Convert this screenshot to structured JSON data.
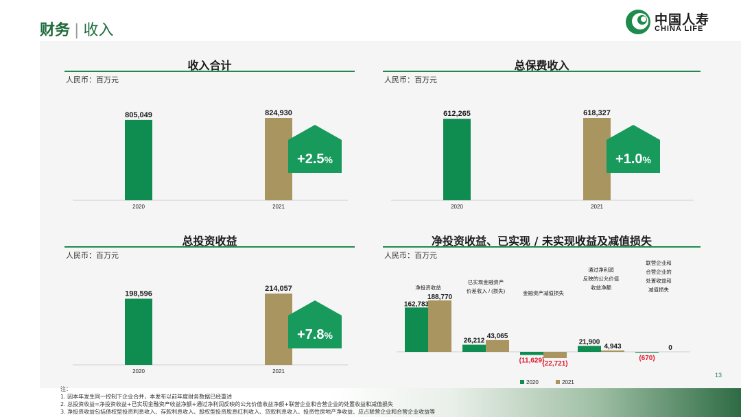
{
  "header": {
    "title_main": "财务",
    "separator": "|",
    "title_sub": "收入"
  },
  "logo": {
    "name_cn": "中国人寿",
    "name_en": "CHINA LIFE"
  },
  "page_number": "13",
  "colors": {
    "y2020": "#0f8c4f",
    "y2021": "#a89560",
    "accent": "#1e8a4c"
  },
  "chart_data": [
    {
      "type": "bar",
      "title": "收入合计",
      "unit": "人民币：百万元",
      "categories": [
        "2020",
        "2021"
      ],
      "values": [
        805049,
        824930
      ],
      "value_labels": [
        "805,049",
        "824,930"
      ],
      "growth_label": "+2.5",
      "growth_suffix": "%"
    },
    {
      "type": "bar",
      "title": "总保费收入",
      "unit": "人民币：百万元",
      "categories": [
        "2020",
        "2021"
      ],
      "values": [
        612265,
        618327
      ],
      "value_labels": [
        "612,265",
        "618,327"
      ],
      "growth_label": "+1.0",
      "growth_suffix": "%"
    },
    {
      "type": "bar",
      "title": "总投资收益",
      "unit": "人民币：百万元",
      "categories": [
        "2020",
        "2021"
      ],
      "values": [
        198596,
        214057
      ],
      "value_labels": [
        "198,596",
        "214,057"
      ],
      "growth_label": "+7.8",
      "growth_suffix": "%"
    },
    {
      "type": "bar",
      "title": "净投资收益、已实现 / 未实现收益及减值损失",
      "unit": "人民币：百万元",
      "categories": [
        [
          "净投资收益"
        ],
        [
          "已实现金融资产",
          "价差收入 / (损失)"
        ],
        [
          "金融资产减值损失"
        ],
        [
          "通过净利润",
          "反映的公允价值",
          "收益净额"
        ],
        [
          "联营企业和",
          "合营企业的",
          "处置收益和",
          "减值损失"
        ]
      ],
      "series": [
        {
          "name": "2020",
          "values": [
            162783,
            26212,
            -11629,
            21900,
            -670
          ],
          "labels": [
            "162,783",
            "26,212",
            "(11,629)",
            "21,900",
            "(670)"
          ]
        },
        {
          "name": "2021",
          "values": [
            188770,
            43065,
            -22721,
            4943,
            0
          ],
          "labels": [
            "188,770",
            "43,065",
            "(22,721)",
            "4,943",
            "0"
          ]
        }
      ],
      "legend_position": "bottom"
    }
  ],
  "notes": [
    "注：",
    "1.    因本年发生同一控制下企业合并，本发布以前年度财务数据已经重述",
    "2.    总投资收益=净投资收益+已实现金融资产收益净额+通过净利润反映的公允价值收益净额+联营企业和合营企业的处置收益和减值损失",
    "3.    净投资收益包括债权型投资利息收入、存款利息收入、股权型投资股息红利收入、贷款利息收入、投资性房地产净收益、应占联营企业和合营企业收益等"
  ]
}
